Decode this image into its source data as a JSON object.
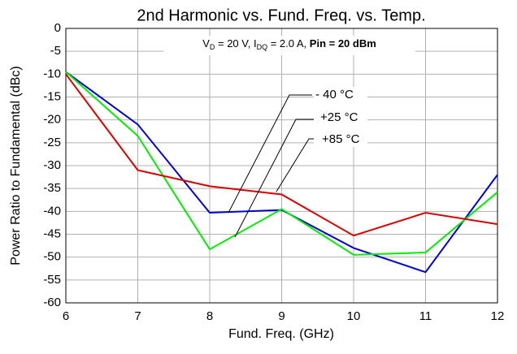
{
  "chart_data": {
    "type": "line",
    "title": "2nd Harmonic vs. Fund. Freq. vs. Temp.",
    "x_label": "Fund. Freq. (GHz)",
    "y_label": "Power Ratio to Fundamental (dBc)",
    "annotation": [
      "V",
      "D",
      " = 20 V, I",
      "DQ",
      " = 2.0 A, ",
      "Pin = 20 dBm"
    ],
    "x": [
      6,
      7,
      8,
      9,
      10,
      11,
      12
    ],
    "series": [
      {
        "name": "- 40 °C",
        "color": "#0000dd",
        "values": [
          -9.5,
          -21,
          -40.3,
          -39.7,
          -48,
          -53.3,
          -32
        ]
      },
      {
        "name": "+25 °C",
        "color": "#00ee00",
        "values": [
          -9.5,
          -23.5,
          -48.3,
          -39.5,
          -49.5,
          -49,
          -35.8
        ]
      },
      {
        "name": "+85 °C",
        "color": "#dd0000",
        "values": [
          -10,
          -31,
          -34.5,
          -36.3,
          -45.3,
          -40.3,
          -42.8
        ]
      }
    ],
    "xlim": [
      6,
      12
    ],
    "xticks": [
      6,
      7,
      8,
      9,
      10,
      11,
      12
    ],
    "ylim": [
      -60,
      0
    ],
    "yticks": [
      0,
      -5,
      -10,
      -15,
      -20,
      -25,
      -30,
      -35,
      -40,
      -45,
      -50,
      -55,
      -60
    ],
    "grid": true
  }
}
